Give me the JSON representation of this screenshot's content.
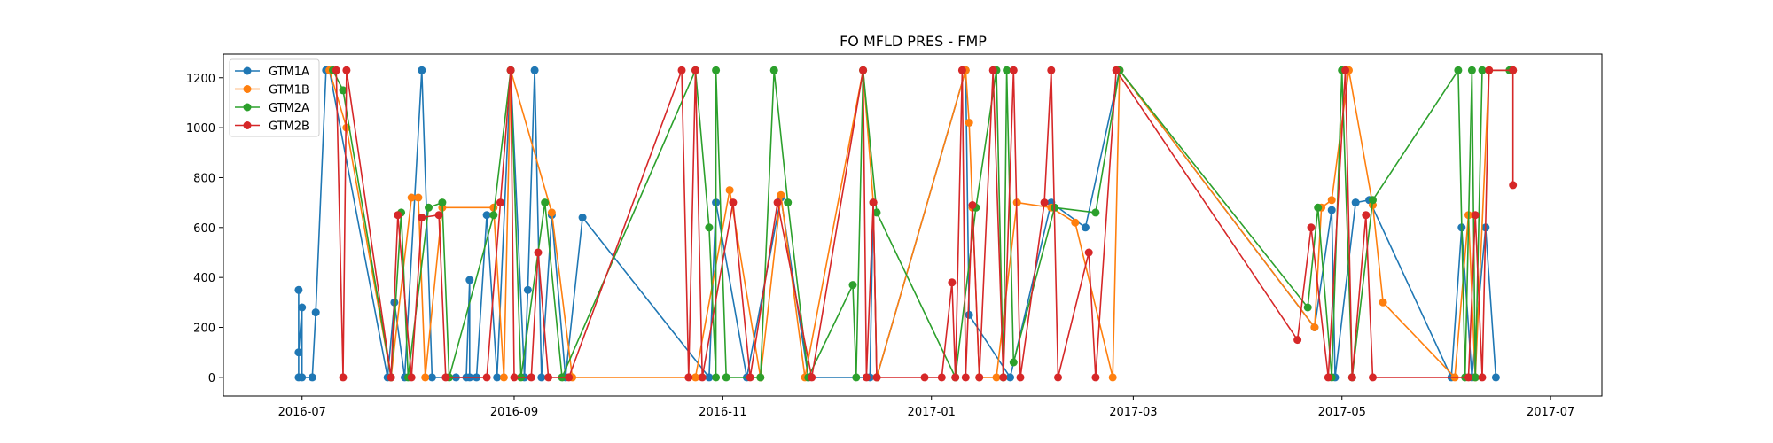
{
  "chart_data": {
    "type": "line",
    "title": "FO MFLD PRES - FMP",
    "xlabel": "",
    "ylabel": "",
    "x_axis": "date",
    "xlim": [
      "2016-06-08",
      "2017-07-16"
    ],
    "ylim": [
      -75,
      1295
    ],
    "x_ticks": [
      "2016-07",
      "2016-09",
      "2016-11",
      "2017-01",
      "2017-03",
      "2017-05",
      "2017-07"
    ],
    "x_tick_dates": [
      "2016-07-01",
      "2016-09-01",
      "2016-11-01",
      "2017-01-01",
      "2017-03-01",
      "2017-05-01",
      "2017-07-01"
    ],
    "y_ticks": [
      0,
      200,
      400,
      600,
      800,
      1000,
      1200
    ],
    "grid": false,
    "legend": {
      "position": "top-left",
      "entries": [
        "GTM1A",
        "GTM1B",
        "GTM2A",
        "GTM2B"
      ]
    },
    "marker": "circle",
    "series": [
      {
        "name": "GTM1A",
        "color": "#1f77b4",
        "points": [
          [
            "2016-06-30",
            0
          ],
          [
            "2016-06-30",
            350
          ],
          [
            "2016-06-30",
            100
          ],
          [
            "2016-07-01",
            280
          ],
          [
            "2016-07-01",
            0
          ],
          [
            "2016-07-04",
            0
          ],
          [
            "2016-07-05",
            260
          ],
          [
            "2016-07-08",
            1230
          ],
          [
            "2016-07-09",
            1230
          ],
          [
            "2016-07-26",
            0
          ],
          [
            "2016-07-28",
            300
          ],
          [
            "2016-07-31",
            0
          ],
          [
            "2016-08-05",
            1230
          ],
          [
            "2016-08-08",
            0
          ],
          [
            "2016-08-15",
            0
          ],
          [
            "2016-08-18",
            0
          ],
          [
            "2016-08-19",
            390
          ],
          [
            "2016-08-19",
            0
          ],
          [
            "2016-08-21",
            0
          ],
          [
            "2016-08-24",
            650
          ],
          [
            "2016-08-27",
            0
          ],
          [
            "2016-08-31",
            1230
          ],
          [
            "2016-09-04",
            0
          ],
          [
            "2016-09-05",
            350
          ],
          [
            "2016-09-07",
            1230
          ],
          [
            "2016-09-09",
            0
          ],
          [
            "2016-09-12",
            650
          ],
          [
            "2016-09-16",
            0
          ],
          [
            "2016-09-21",
            640
          ],
          [
            "2016-10-28",
            0
          ],
          [
            "2016-10-30",
            700
          ],
          [
            "2016-11-08",
            0
          ],
          [
            "2016-11-18",
            720
          ],
          [
            "2016-11-26",
            0
          ],
          [
            "2016-12-14",
            0
          ],
          [
            "2016-12-15",
            700
          ],
          [
            "2016-12-16",
            0
          ],
          [
            "2017-01-11",
            1230
          ],
          [
            "2017-01-12",
            250
          ],
          [
            "2017-01-24",
            0
          ],
          [
            "2017-02-05",
            700
          ],
          [
            "2017-02-15",
            600
          ],
          [
            "2017-02-25",
            1230
          ],
          [
            "2017-04-23",
            200
          ],
          [
            "2017-04-28",
            670
          ],
          [
            "2017-04-29",
            0
          ],
          [
            "2017-05-05",
            700
          ],
          [
            "2017-05-09",
            710
          ],
          [
            "2017-06-02",
            0
          ],
          [
            "2017-06-05",
            600
          ],
          [
            "2017-06-08",
            0
          ],
          [
            "2017-06-12",
            600
          ],
          [
            "2017-06-15",
            0
          ]
        ]
      },
      {
        "name": "GTM1B",
        "color": "#ff7f0e",
        "points": [
          [
            "2016-07-09",
            1230
          ],
          [
            "2016-07-14",
            1000
          ],
          [
            "2016-07-27",
            0
          ],
          [
            "2016-08-02",
            720
          ],
          [
            "2016-08-04",
            720
          ],
          [
            "2016-08-06",
            0
          ],
          [
            "2016-08-11",
            680
          ],
          [
            "2016-08-26",
            680
          ],
          [
            "2016-08-29",
            0
          ],
          [
            "2016-08-31",
            1230
          ],
          [
            "2016-09-12",
            660
          ],
          [
            "2016-09-18",
            0
          ],
          [
            "2016-10-24",
            0
          ],
          [
            "2016-11-03",
            750
          ],
          [
            "2016-11-12",
            0
          ],
          [
            "2016-11-18",
            730
          ],
          [
            "2016-11-25",
            0
          ],
          [
            "2016-12-12",
            1230
          ],
          [
            "2016-12-15",
            700
          ],
          [
            "2016-12-16",
            0
          ],
          [
            "2017-01-11",
            1230
          ],
          [
            "2017-01-12",
            1020
          ],
          [
            "2017-01-13",
            680
          ],
          [
            "2017-01-15",
            0
          ],
          [
            "2017-01-20",
            0
          ],
          [
            "2017-01-26",
            700
          ],
          [
            "2017-02-05",
            680
          ],
          [
            "2017-02-12",
            620
          ],
          [
            "2017-02-23",
            0
          ],
          [
            "2017-02-25",
            1230
          ],
          [
            "2017-04-23",
            200
          ],
          [
            "2017-04-25",
            680
          ],
          [
            "2017-04-28",
            710
          ],
          [
            "2017-05-03",
            1230
          ],
          [
            "2017-05-10",
            690
          ],
          [
            "2017-05-13",
            300
          ],
          [
            "2017-06-03",
            0
          ],
          [
            "2017-06-07",
            650
          ],
          [
            "2017-06-09",
            0
          ],
          [
            "2017-06-13",
            1230
          ],
          [
            "2017-06-20",
            1230
          ]
        ]
      },
      {
        "name": "GTM2A",
        "color": "#2ca02c",
        "points": [
          [
            "2016-07-10",
            1230
          ],
          [
            "2016-07-13",
            1150
          ],
          [
            "2016-07-27",
            0
          ],
          [
            "2016-07-30",
            660
          ],
          [
            "2016-08-01",
            0
          ],
          [
            "2016-08-07",
            680
          ],
          [
            "2016-08-11",
            700
          ],
          [
            "2016-08-13",
            0
          ],
          [
            "2016-08-26",
            650
          ],
          [
            "2016-08-31",
            1230
          ],
          [
            "2016-09-03",
            0
          ],
          [
            "2016-09-10",
            700
          ],
          [
            "2016-09-15",
            0
          ],
          [
            "2016-10-24",
            1230
          ],
          [
            "2016-10-28",
            600
          ],
          [
            "2016-10-30",
            0
          ],
          [
            "2016-10-30",
            1230
          ],
          [
            "2016-11-02",
            0
          ],
          [
            "2016-11-12",
            0
          ],
          [
            "2016-11-16",
            1230
          ],
          [
            "2016-11-20",
            700
          ],
          [
            "2016-11-26",
            0
          ],
          [
            "2016-12-09",
            370
          ],
          [
            "2016-12-10",
            0
          ],
          [
            "2016-12-12",
            1230
          ],
          [
            "2016-12-16",
            660
          ],
          [
            "2017-01-08",
            0
          ],
          [
            "2017-01-14",
            680
          ],
          [
            "2017-01-20",
            1230
          ],
          [
            "2017-01-22",
            0
          ],
          [
            "2017-01-23",
            1230
          ],
          [
            "2017-01-25",
            60
          ],
          [
            "2017-02-06",
            680
          ],
          [
            "2017-02-18",
            660
          ],
          [
            "2017-02-25",
            1230
          ],
          [
            "2017-04-21",
            280
          ],
          [
            "2017-04-24",
            680
          ],
          [
            "2017-04-28",
            0
          ],
          [
            "2017-05-01",
            1230
          ],
          [
            "2017-05-04",
            0
          ],
          [
            "2017-05-10",
            710
          ],
          [
            "2017-06-04",
            1230
          ],
          [
            "2017-06-06",
            0
          ],
          [
            "2017-06-08",
            1230
          ],
          [
            "2017-06-09",
            0
          ],
          [
            "2017-06-11",
            1230
          ],
          [
            "2017-06-19",
            1230
          ]
        ]
      },
      {
        "name": "GTM2B",
        "color": "#d62728",
        "points": [
          [
            "2016-07-11",
            1230
          ],
          [
            "2016-07-13",
            0
          ],
          [
            "2016-07-14",
            1230
          ],
          [
            "2016-07-27",
            0
          ],
          [
            "2016-07-29",
            650
          ],
          [
            "2016-08-02",
            0
          ],
          [
            "2016-08-05",
            640
          ],
          [
            "2016-08-10",
            650
          ],
          [
            "2016-08-12",
            0
          ],
          [
            "2016-08-24",
            0
          ],
          [
            "2016-08-28",
            700
          ],
          [
            "2016-08-31",
            1230
          ],
          [
            "2016-09-01",
            0
          ],
          [
            "2016-09-06",
            0
          ],
          [
            "2016-09-08",
            500
          ],
          [
            "2016-09-11",
            0
          ],
          [
            "2016-09-17",
            0
          ],
          [
            "2016-10-20",
            1230
          ],
          [
            "2016-10-22",
            0
          ],
          [
            "2016-10-24",
            1230
          ],
          [
            "2016-10-26",
            0
          ],
          [
            "2016-11-04",
            700
          ],
          [
            "2016-11-09",
            0
          ],
          [
            "2016-11-17",
            700
          ],
          [
            "2016-11-27",
            0
          ],
          [
            "2016-12-12",
            1230
          ],
          [
            "2016-12-13",
            0
          ],
          [
            "2016-12-15",
            700
          ],
          [
            "2016-12-16",
            0
          ],
          [
            "2016-12-30",
            0
          ],
          [
            "2017-01-04",
            0
          ],
          [
            "2017-01-07",
            380
          ],
          [
            "2017-01-08",
            0
          ],
          [
            "2017-01-10",
            1230
          ],
          [
            "2017-01-11",
            0
          ],
          [
            "2017-01-13",
            690
          ],
          [
            "2017-01-15",
            0
          ],
          [
            "2017-01-19",
            1230
          ],
          [
            "2017-01-22",
            0
          ],
          [
            "2017-01-25",
            1230
          ],
          [
            "2017-01-27",
            0
          ],
          [
            "2017-02-03",
            700
          ],
          [
            "2017-02-05",
            1230
          ],
          [
            "2017-02-07",
            0
          ],
          [
            "2017-02-16",
            500
          ],
          [
            "2017-02-18",
            0
          ],
          [
            "2017-02-24",
            1230
          ],
          [
            "2017-04-18",
            150
          ],
          [
            "2017-04-22",
            600
          ],
          [
            "2017-04-27",
            0
          ],
          [
            "2017-05-02",
            1230
          ],
          [
            "2017-05-04",
            0
          ],
          [
            "2017-05-08",
            650
          ],
          [
            "2017-05-10",
            0
          ],
          [
            "2017-06-07",
            0
          ],
          [
            "2017-06-09",
            650
          ],
          [
            "2017-06-11",
            0
          ],
          [
            "2017-06-13",
            1230
          ],
          [
            "2017-06-20",
            1230
          ],
          [
            "2017-06-20",
            770
          ]
        ]
      }
    ]
  }
}
